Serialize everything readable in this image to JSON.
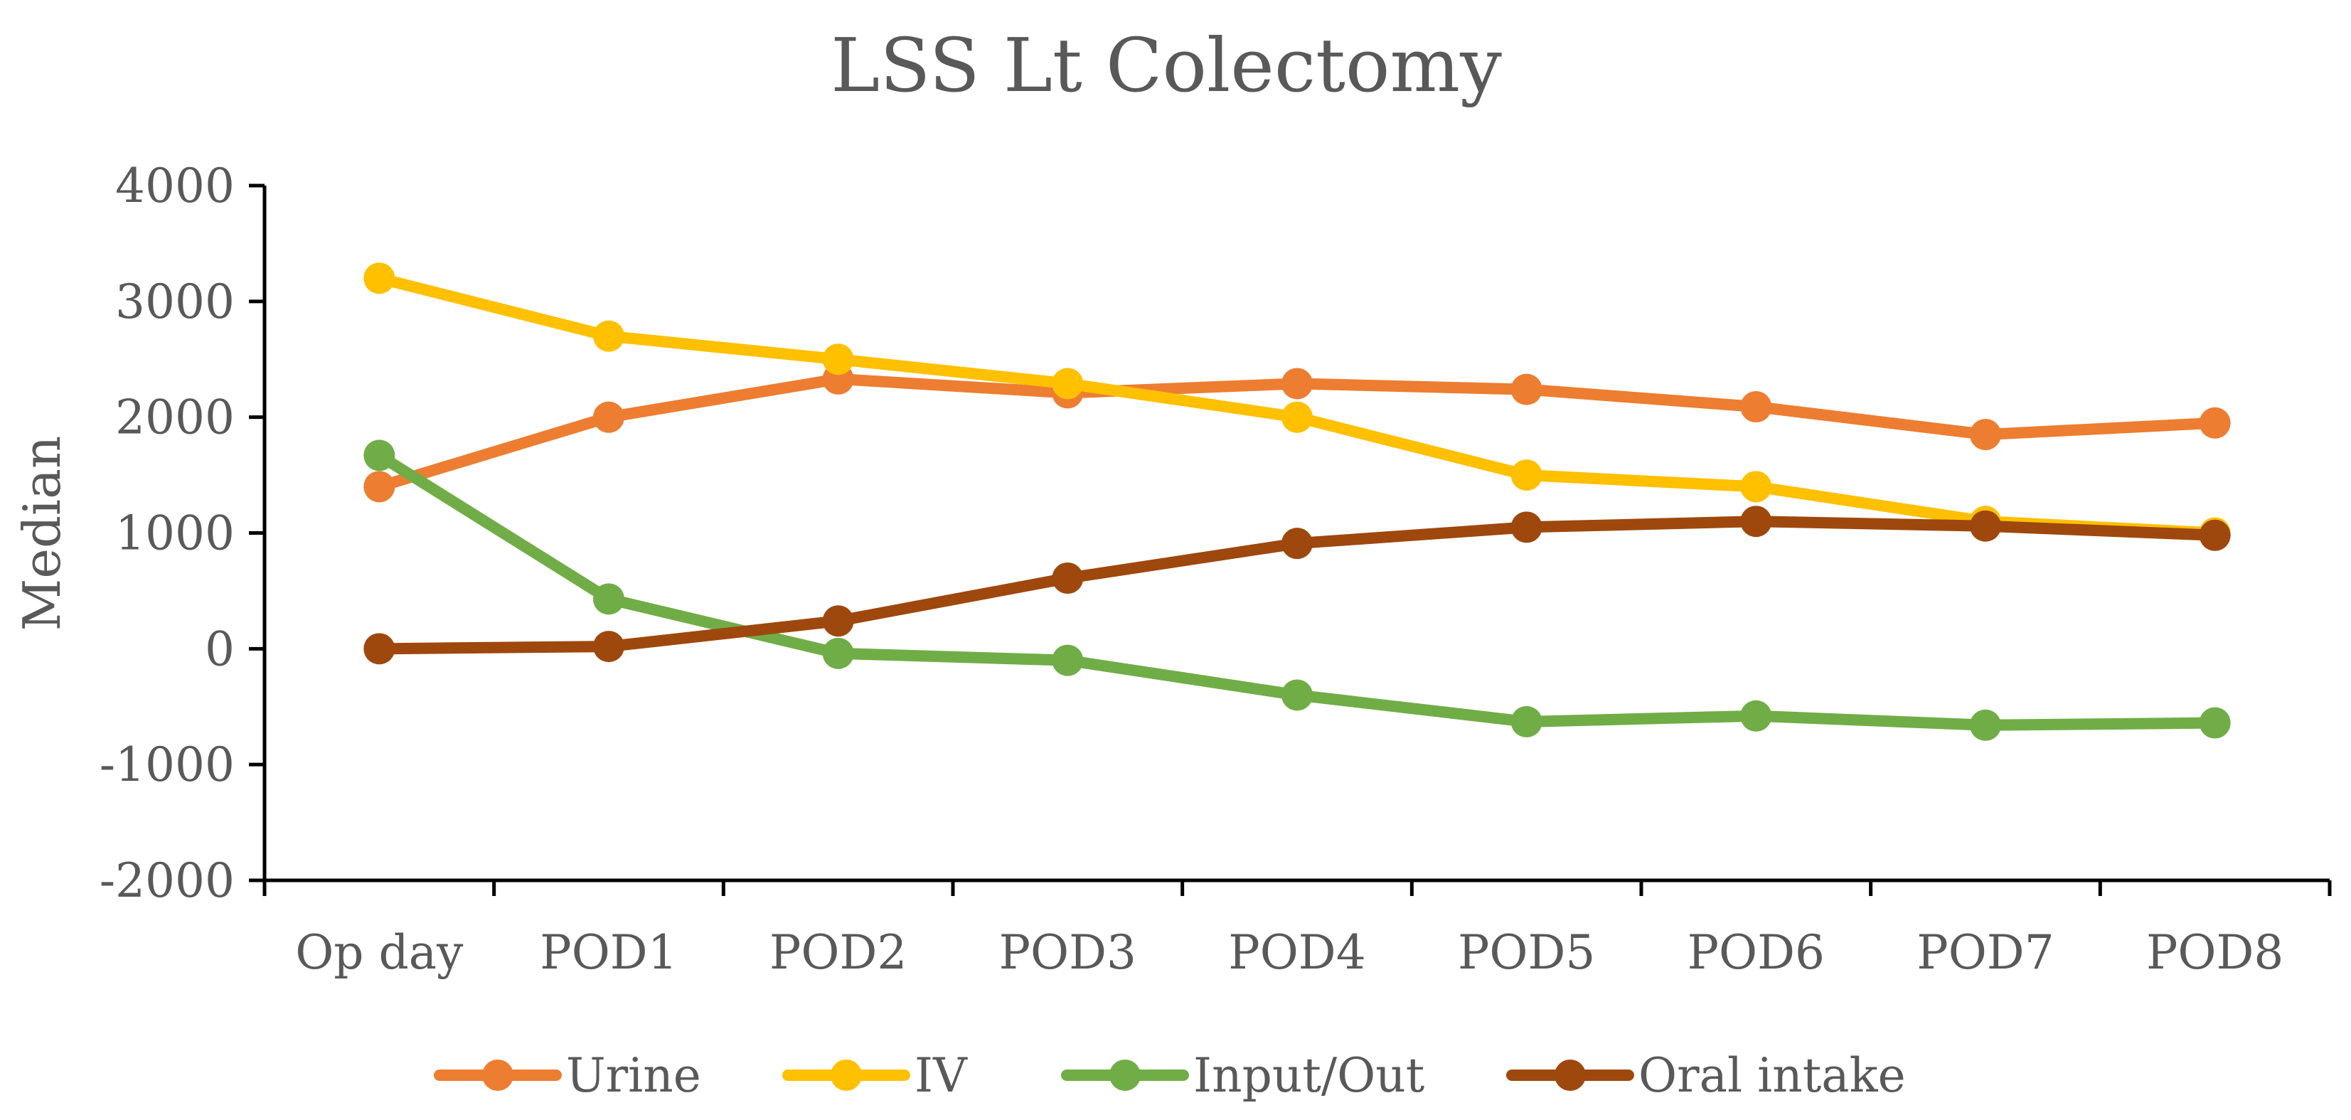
{
  "chart_data": {
    "type": "line",
    "title": "LSS Lt Colectomy",
    "xlabel": "",
    "ylabel": "Median",
    "categories": [
      "Op day",
      "POD1",
      "POD2",
      "POD3",
      "POD4",
      "POD5",
      "POD6",
      "POD7",
      "POD8"
    ],
    "ylim": [
      -2000,
      4000
    ],
    "yticks": [
      -2000,
      -1000,
      0,
      1000,
      2000,
      3000,
      4000
    ],
    "grid": false,
    "legend_position": "bottom",
    "series": [
      {
        "name": "Urine",
        "color": "#ED7D31",
        "values": [
          1400,
          2000,
          2330,
          2210,
          2290,
          2240,
          2090,
          1850,
          1950
        ]
      },
      {
        "name": "IV",
        "color": "#FFC000",
        "values": [
          3200,
          2700,
          2500,
          2290,
          2000,
          1500,
          1400,
          1100,
          1000
        ]
      },
      {
        "name": "Input/Out",
        "color": "#70AD47",
        "values": [
          1670,
          430,
          -40,
          -100,
          -400,
          -630,
          -580,
          -660,
          -640
        ]
      },
      {
        "name": "Oral intake",
        "color": "#9E480E",
        "values": [
          0,
          20,
          240,
          610,
          910,
          1050,
          1100,
          1060,
          980
        ]
      }
    ]
  }
}
